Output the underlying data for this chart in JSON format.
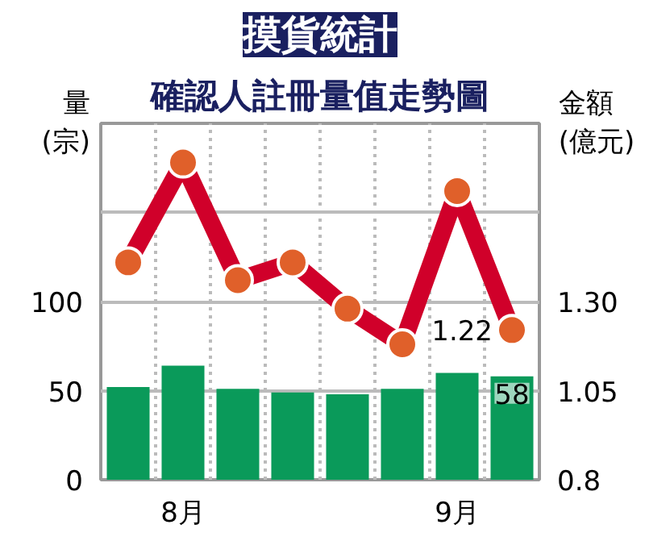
{
  "chart_data": {
    "type": "bar",
    "title": "摸貨統計",
    "subtitle": "確認人註冊量值走勢圖",
    "ylabel": "量\n(宗)",
    "y2label": "金額\n(億元)",
    "categories": [
      null,
      "8月",
      null,
      null,
      null,
      null,
      "9月",
      null
    ],
    "series": [
      {
        "color": "#0a9a5a",
        "values": [
          52,
          64,
          51,
          49,
          48,
          51,
          60,
          58
        ],
        "value_labels": [
          null,
          null,
          null,
          null,
          null,
          null,
          null,
          "58"
        ]
      },
      {
        "type": "line",
        "axis": "y2",
        "color": "#d0002a",
        "marker": "circle",
        "values": [
          1.41,
          1.69,
          1.36,
          1.41,
          1.28,
          1.18,
          1.61,
          1.22
        ],
        "value_labels": [
          null,
          null,
          null,
          null,
          null,
          null,
          null,
          "1.22"
        ]
      }
    ],
    "ylim": [
      0,
      200
    ],
    "yticks": [
      0,
      50,
      100
    ],
    "y2lim": [
      0.8,
      1.8
    ],
    "y2ticks": [
      0.8,
      1.05,
      {
        "value": 1.3,
        "label": "1.30"
      }
    ],
    "grid": true
  }
}
